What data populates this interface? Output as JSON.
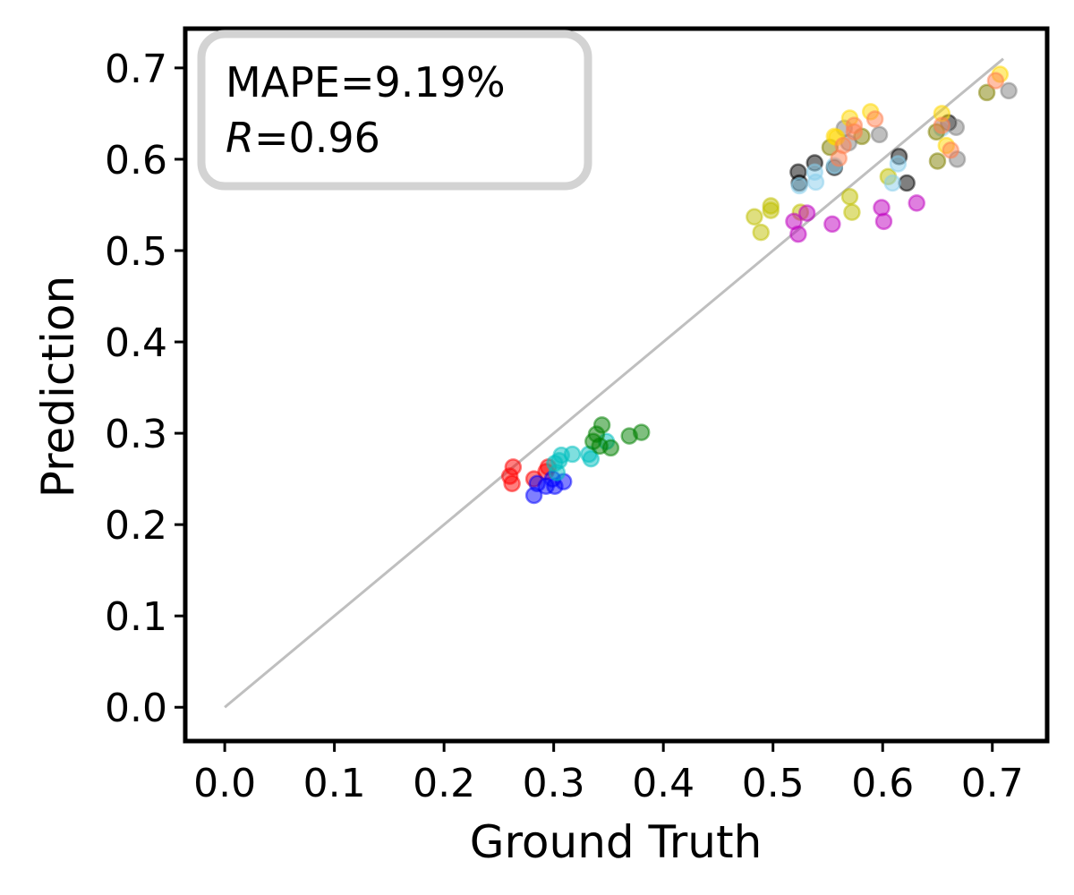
{
  "chart_data": {
    "type": "scatter",
    "title": "",
    "xlabel": "Ground Truth",
    "ylabel": "Prediction",
    "xlim": [
      -0.036,
      0.75
    ],
    "ylim": [
      -0.037,
      0.743
    ],
    "xticks": [
      "0.0",
      "0.1",
      "0.2",
      "0.3",
      "0.4",
      "0.5",
      "0.6",
      "0.7"
    ],
    "yticks": [
      "0.0",
      "0.1",
      "0.2",
      "0.3",
      "0.4",
      "0.5",
      "0.6",
      "0.7"
    ],
    "grid": false,
    "reference_line": {
      "x": [
        0,
        0.71
      ],
      "y": [
        0,
        0.71
      ],
      "color": "#bfbfbf"
    },
    "annotation": {
      "mape": "MAPE=9.19%",
      "r_symbol": "R",
      "r_value": "=0.96",
      "placement": "top-left"
    },
    "marker_alpha": 0.5,
    "series": [
      {
        "name": "red",
        "color": "#ff0000",
        "points": [
          [
            0.263,
            0.263
          ],
          [
            0.26,
            0.253
          ],
          [
            0.262,
            0.245
          ],
          [
            0.295,
            0.263
          ],
          [
            0.282,
            0.25
          ],
          [
            0.293,
            0.258
          ]
        ]
      },
      {
        "name": "blue",
        "color": "#0000ff",
        "points": [
          [
            0.282,
            0.232
          ],
          [
            0.285,
            0.245
          ],
          [
            0.293,
            0.242
          ],
          [
            0.301,
            0.242
          ],
          [
            0.309,
            0.247
          ],
          [
            0.299,
            0.25
          ]
        ]
      },
      {
        "name": "cyan",
        "color": "#00bfbf",
        "points": [
          [
            0.307,
            0.276
          ],
          [
            0.317,
            0.277
          ],
          [
            0.332,
            0.277
          ],
          [
            0.334,
            0.272
          ],
          [
            0.303,
            0.257
          ],
          [
            0.301,
            0.267
          ],
          [
            0.348,
            0.291
          ],
          [
            0.305,
            0.27
          ]
        ]
      },
      {
        "name": "green",
        "color": "#008000",
        "points": [
          [
            0.344,
            0.309
          ],
          [
            0.339,
            0.299
          ],
          [
            0.352,
            0.284
          ],
          [
            0.369,
            0.297
          ],
          [
            0.38,
            0.301
          ],
          [
            0.336,
            0.291
          ],
          [
            0.342,
            0.286
          ]
        ]
      },
      {
        "name": "yellow-olive",
        "color": "#bfbf00",
        "points": [
          [
            0.483,
            0.537
          ],
          [
            0.489,
            0.52
          ],
          [
            0.498,
            0.549
          ],
          [
            0.498,
            0.544
          ],
          [
            0.525,
            0.542
          ],
          [
            0.57,
            0.559
          ],
          [
            0.572,
            0.542
          ],
          [
            0.605,
            0.581
          ]
        ]
      },
      {
        "name": "magenta",
        "color": "#bf00bf",
        "points": [
          [
            0.519,
            0.532
          ],
          [
            0.523,
            0.518
          ],
          [
            0.531,
            0.541
          ],
          [
            0.554,
            0.529
          ],
          [
            0.599,
            0.547
          ],
          [
            0.601,
            0.532
          ],
          [
            0.631,
            0.552
          ]
        ]
      },
      {
        "name": "black",
        "color": "#000000",
        "points": [
          [
            0.523,
            0.586
          ],
          [
            0.538,
            0.596
          ],
          [
            0.524,
            0.574
          ],
          [
            0.556,
            0.591
          ],
          [
            0.615,
            0.603
          ],
          [
            0.622,
            0.574
          ],
          [
            0.66,
            0.64
          ]
        ]
      },
      {
        "name": "skyblue",
        "color": "#87ceeb",
        "points": [
          [
            0.524,
            0.571
          ],
          [
            0.539,
            0.575
          ],
          [
            0.538,
            0.586
          ],
          [
            0.556,
            0.593
          ],
          [
            0.614,
            0.595
          ],
          [
            0.609,
            0.574
          ],
          [
            0.654,
            0.634
          ]
        ]
      },
      {
        "name": "olive",
        "color": "#808000",
        "points": [
          [
            0.552,
            0.613
          ],
          [
            0.581,
            0.625
          ],
          [
            0.65,
            0.598
          ],
          [
            0.649,
            0.63
          ],
          [
            0.695,
            0.673
          ]
        ]
      },
      {
        "name": "gray",
        "color": "#808080",
        "points": [
          [
            0.565,
            0.634
          ],
          [
            0.597,
            0.627
          ],
          [
            0.569,
            0.618
          ],
          [
            0.667,
            0.635
          ],
          [
            0.668,
            0.6
          ],
          [
            0.715,
            0.675
          ]
        ]
      },
      {
        "name": "gold",
        "color": "#ffd700",
        "points": [
          [
            0.57,
            0.645
          ],
          [
            0.589,
            0.652
          ],
          [
            0.556,
            0.625
          ],
          [
            0.558,
            0.624
          ],
          [
            0.654,
            0.65
          ],
          [
            0.658,
            0.615
          ],
          [
            0.707,
            0.693
          ]
        ]
      },
      {
        "name": "coral",
        "color": "#ff7f50",
        "points": [
          [
            0.593,
            0.644
          ],
          [
            0.574,
            0.637
          ],
          [
            0.56,
            0.601
          ],
          [
            0.564,
            0.615
          ],
          [
            0.574,
            0.63
          ],
          [
            0.654,
            0.637
          ],
          [
            0.662,
            0.61
          ],
          [
            0.703,
            0.686
          ]
        ]
      }
    ]
  }
}
